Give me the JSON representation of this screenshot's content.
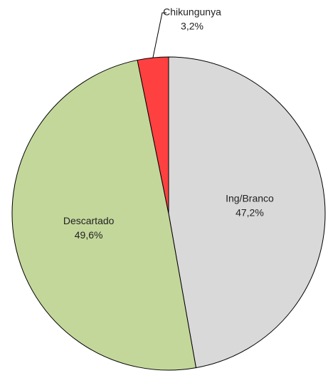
{
  "chart_data": {
    "type": "pie",
    "categories": [
      "Ing/Branco",
      "Descartado",
      "Chikungunya"
    ],
    "values": [
      47.2,
      49.6,
      3.2
    ],
    "value_labels": [
      "47,2%",
      "49,6%",
      "3,2%"
    ],
    "colors": [
      "#d9d9d9",
      "#c4d79b",
      "#ff4040"
    ]
  }
}
